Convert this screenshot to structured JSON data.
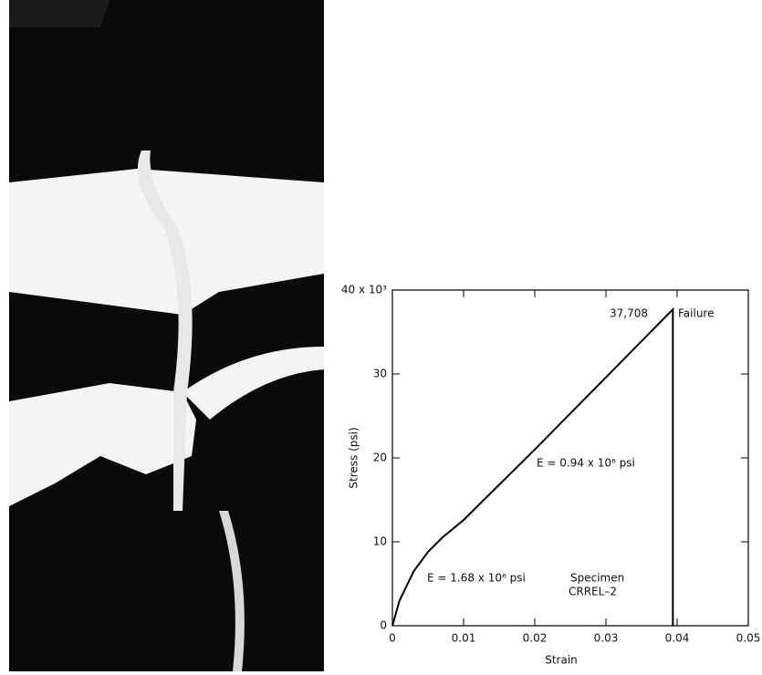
{
  "chart_data": {
    "type": "line",
    "x_label": "Strain",
    "y_label": "Stress (psi)",
    "xlim": [
      0,
      0.05
    ],
    "xticks": [
      0,
      0.01,
      0.02,
      0.03,
      0.04,
      0.05
    ],
    "ylim": [
      0,
      40
    ],
    "yticks": [
      0,
      10,
      20,
      30,
      {
        "value": 40,
        "label": "40 x 10³"
      }
    ],
    "x": [
      0,
      0.001,
      0.003,
      0.005,
      0.007,
      0.01,
      0.02,
      0.03,
      0.0394,
      0.0394
    ],
    "series": [
      {
        "color": "#000000",
        "values": [
          0,
          3,
          6.5,
          8.8,
          10.5,
          12.6,
          21,
          29.6,
          37.7,
          0
        ]
      }
    ],
    "annotations": [
      "E = 1.68 x 10⁶ psi",
      "E = 0.94 x 10⁶ psi",
      "Specimen",
      "CRREL–2",
      "37,708",
      "Failure"
    ]
  }
}
